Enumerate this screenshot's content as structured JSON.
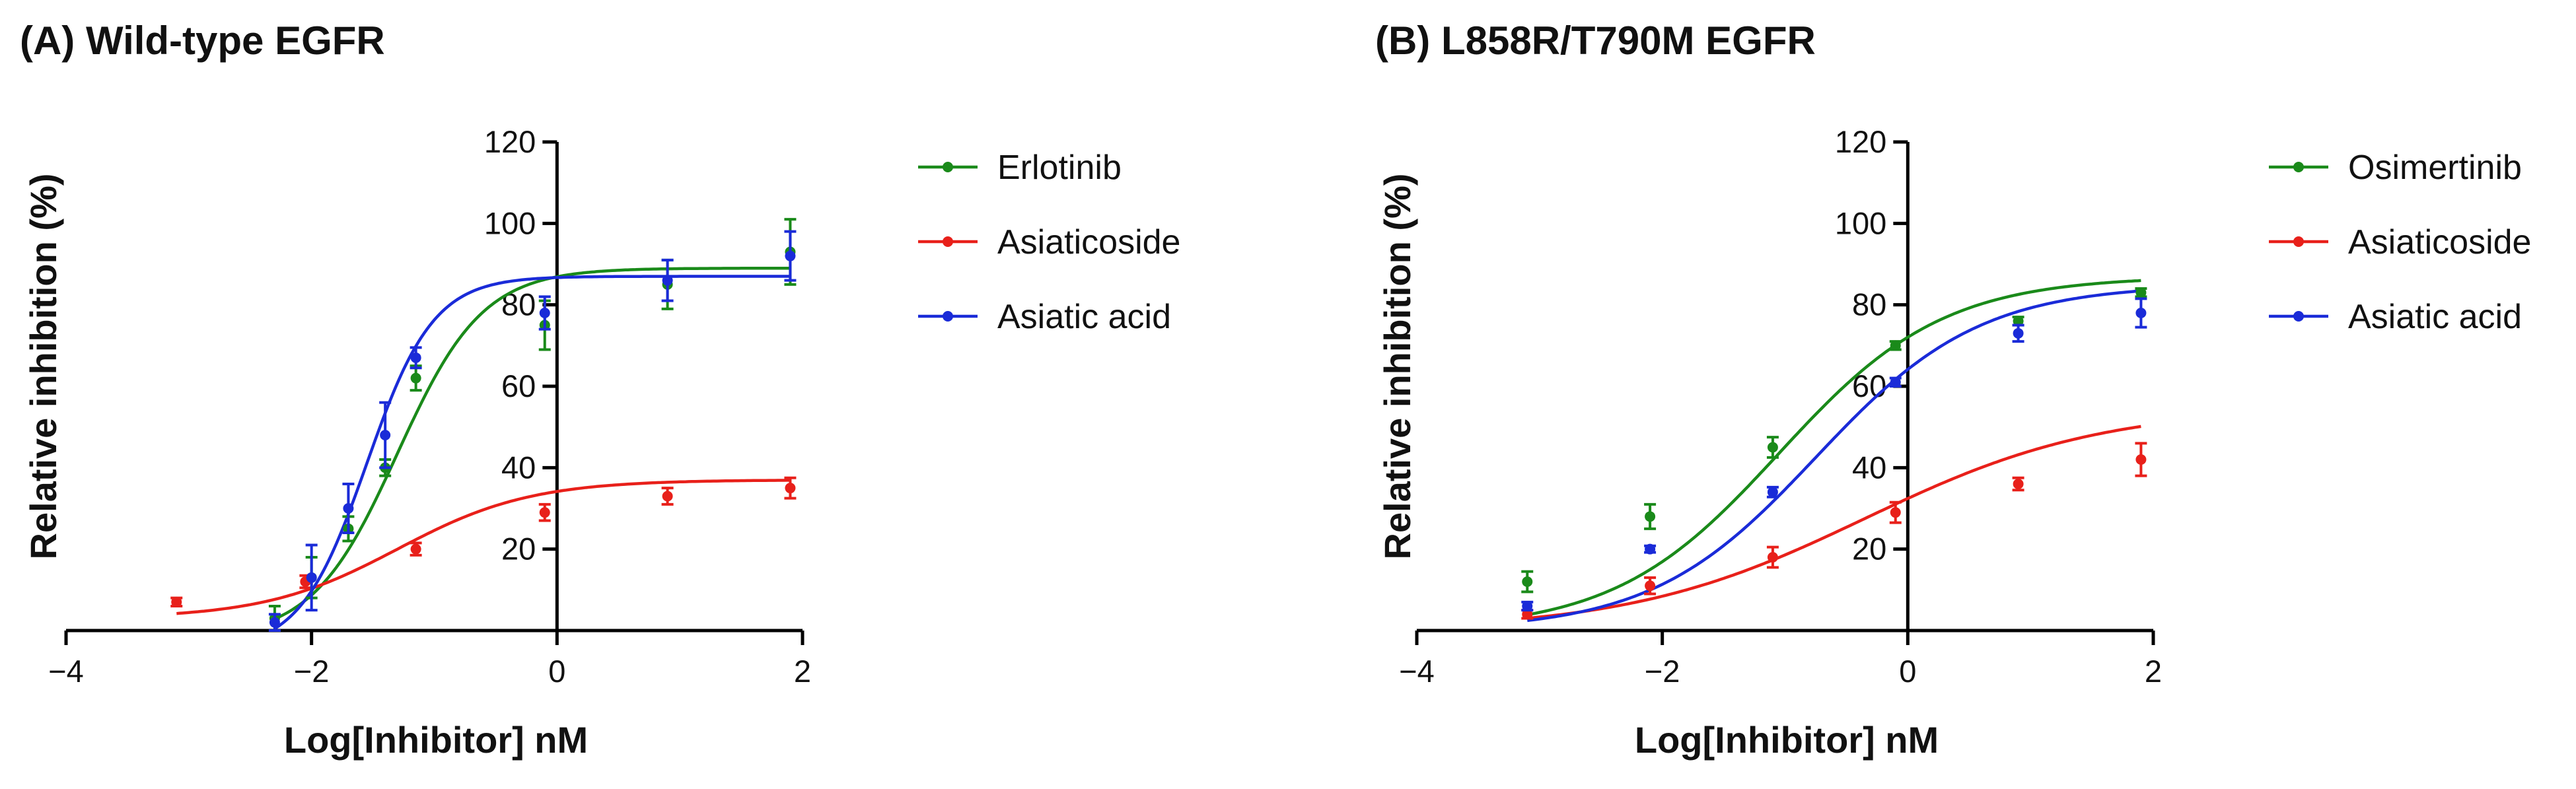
{
  "chart_data": [
    {
      "type": "scatter",
      "panel_title": "(A) Wild-type EGFR",
      "xlabel": "Log[Inhibitor] nM",
      "ylabel": "Relative inhibition (%)",
      "xlim": [
        -4,
        2
      ],
      "ylim": [
        0,
        120
      ],
      "x_ticks": [
        -4,
        -2,
        0,
        2
      ],
      "x_tick_labels": [
        "−4",
        "−2",
        "0",
        "2"
      ],
      "y_ticks": [
        20,
        40,
        60,
        80,
        100,
        120
      ],
      "y_tick_labels": [
        "20",
        "40",
        "60",
        "80",
        "100",
        "120"
      ],
      "grid": false,
      "legend_position": "right",
      "series": [
        {
          "name": "Erlotinib",
          "color": "#1a8a1a",
          "points": [
            {
              "x": -2.3,
              "y": 3,
              "err": 3
            },
            {
              "x": -2.0,
              "y": 13,
              "err": 5
            },
            {
              "x": -1.7,
              "y": 25,
              "err": 3
            },
            {
              "x": -1.4,
              "y": 40,
              "err": 2
            },
            {
              "x": -1.15,
              "y": 62,
              "err": 3
            },
            {
              "x": -0.1,
              "y": 75,
              "err": 6
            },
            {
              "x": 0.9,
              "y": 85,
              "err": 6
            },
            {
              "x": 1.9,
              "y": 93,
              "err": 8
            }
          ],
          "fit": {
            "bottom": -2,
            "top": 89,
            "logIC50": -1.3,
            "hill": 1.25
          }
        },
        {
          "name": "Asiaticoside",
          "color": "#e8201a",
          "points": [
            {
              "x": -3.1,
              "y": 7,
              "err": 1
            },
            {
              "x": -2.05,
              "y": 12,
              "err": 1.5
            },
            {
              "x": -1.15,
              "y": 20,
              "err": 1.5
            },
            {
              "x": -0.1,
              "y": 29,
              "err": 2
            },
            {
              "x": 0.9,
              "y": 33,
              "err": 2
            },
            {
              "x": 1.9,
              "y": 35,
              "err": 2.5
            }
          ],
          "fit": {
            "bottom": 3,
            "top": 37,
            "logIC50": -1.3,
            "hill": 0.8
          }
        },
        {
          "name": "Asiatic acid",
          "color": "#1a2bd8",
          "points": [
            {
              "x": -2.3,
              "y": 2,
              "err": 2
            },
            {
              "x": -2.0,
              "y": 13,
              "err": 8
            },
            {
              "x": -1.7,
              "y": 30,
              "err": 6
            },
            {
              "x": -1.4,
              "y": 48,
              "err": 8
            },
            {
              "x": -1.15,
              "y": 67,
              "err": 2.5
            },
            {
              "x": -0.1,
              "y": 78,
              "err": 4
            },
            {
              "x": 0.9,
              "y": 86,
              "err": 5
            },
            {
              "x": 1.9,
              "y": 92,
              "err": 6
            }
          ],
          "fit": {
            "bottom": -5,
            "top": 87,
            "logIC50": -1.55,
            "hill": 1.6
          }
        }
      ]
    },
    {
      "type": "scatter",
      "panel_title": "(B) L858R/T790M EGFR",
      "xlabel": "Log[Inhibitor] nM",
      "ylabel": "Relative inhibition (%)",
      "xlim": [
        -4,
        2
      ],
      "ylim": [
        0,
        120
      ],
      "x_ticks": [
        -4,
        -2,
        0,
        2
      ],
      "x_tick_labels": [
        "−4",
        "−2",
        "0",
        "2"
      ],
      "y_ticks": [
        20,
        40,
        60,
        80,
        100,
        120
      ],
      "y_tick_labels": [
        "20",
        "40",
        "60",
        "80",
        "100",
        "120"
      ],
      "grid": false,
      "legend_position": "right",
      "series": [
        {
          "name": "Osimertinib",
          "color": "#1a8a1a",
          "points": [
            {
              "x": -3.1,
              "y": 12,
              "err": 2.5
            },
            {
              "x": -2.1,
              "y": 28,
              "err": 3
            },
            {
              "x": -1.1,
              "y": 45,
              "err": 2.5
            },
            {
              "x": -0.1,
              "y": 70,
              "err": 1
            },
            {
              "x": 0.9,
              "y": 76,
              "err": 1
            },
            {
              "x": 1.9,
              "y": 83,
              "err": 1
            }
          ],
          "fit": {
            "bottom": 0,
            "top": 87,
            "logIC50": -1.05,
            "hill": 0.65
          }
        },
        {
          "name": "Asiaticoside",
          "color": "#e8201a",
          "points": [
            {
              "x": -3.1,
              "y": 4,
              "err": 1
            },
            {
              "x": -2.1,
              "y": 11,
              "err": 2
            },
            {
              "x": -1.1,
              "y": 18,
              "err": 2.5
            },
            {
              "x": -0.1,
              "y": 29,
              "err": 2.5
            },
            {
              "x": 0.9,
              "y": 36,
              "err": 1.5
            },
            {
              "x": 1.9,
              "y": 42,
              "err": 4
            }
          ],
          "fit": {
            "bottom": 0,
            "top": 55,
            "logIC50": -0.35,
            "hill": 0.45
          }
        },
        {
          "name": "Asiatic acid",
          "color": "#1a2bd8",
          "points": [
            {
              "x": -3.1,
              "y": 6,
              "err": 1
            },
            {
              "x": -2.1,
              "y": 20,
              "err": 0.8
            },
            {
              "x": -1.1,
              "y": 34,
              "err": 1.2
            },
            {
              "x": -0.1,
              "y": 61,
              "err": 1
            },
            {
              "x": 0.9,
              "y": 73,
              "err": 2
            },
            {
              "x": 1.9,
              "y": 78,
              "err": 3.5
            }
          ],
          "fit": {
            "bottom": 0,
            "top": 85,
            "logIC50": -0.75,
            "hill": 0.65
          }
        }
      ]
    }
  ]
}
